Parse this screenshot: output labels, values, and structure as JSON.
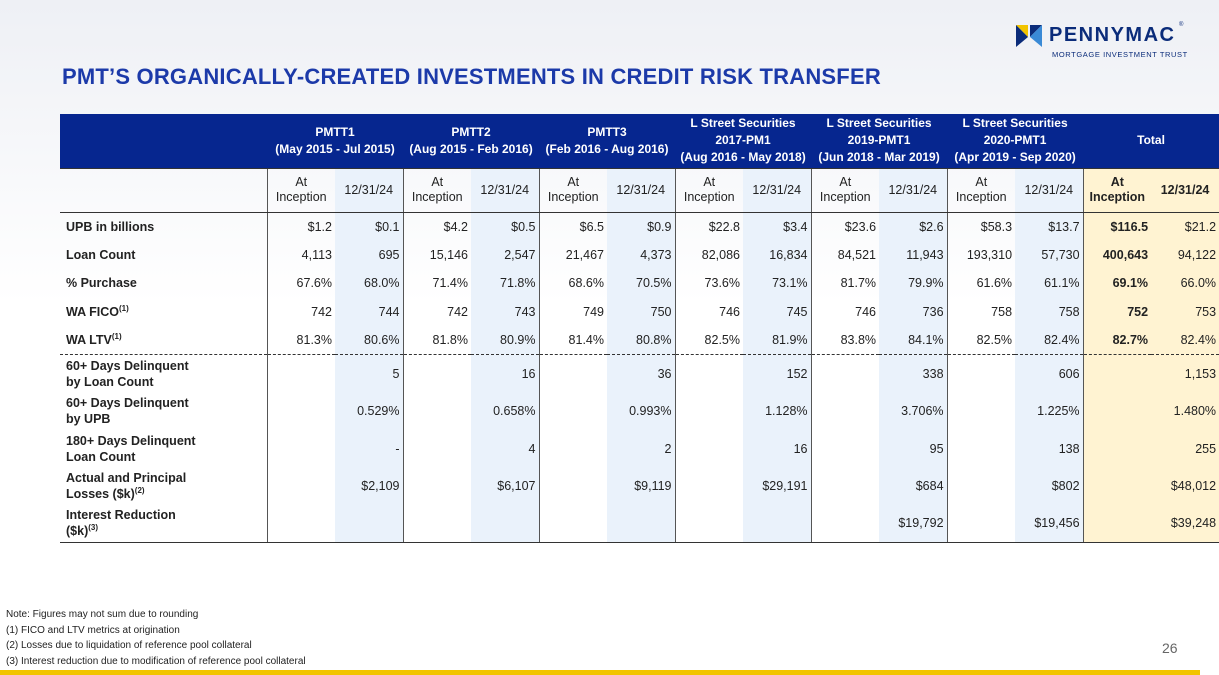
{
  "logo": {
    "name": "PENNYMAC",
    "reg": "®",
    "sub": "MORTGAGE INVESTMENT TRUST"
  },
  "title": "PMT’S ORGANICALLY-CREATED INVESTMENTS IN CREDIT RISK TRANSFER",
  "header": [
    {
      "l1": "PMTT1",
      "l2": "(May 2015 - Jul 2015)"
    },
    {
      "l1": "PMTT2",
      "l2": "(Aug 2015 - Feb 2016)"
    },
    {
      "l1": "PMTT3",
      "l2": "(Feb 2016 - Aug 2016)"
    },
    {
      "l1": "L Street Securities",
      "l2": "2017-PM1",
      "l3": "(Aug 2016 - May 2018)"
    },
    {
      "l1": "L Street Securities",
      "l2": "2019-PMT1",
      "l3": "(Jun 2018 - Mar 2019)"
    },
    {
      "l1": "L Street Securities",
      "l2": "2020-PMT1",
      "l3": "(Apr 2019 - Sep 2020)"
    },
    {
      "l1": "Total"
    }
  ],
  "subheader": {
    "at1": "At",
    "at2": "Inception",
    "date": "12/31/24"
  },
  "rows": [
    {
      "label": "UPB in billions",
      "sup": "",
      "values": [
        "$1.2",
        "$0.1",
        "$4.2",
        "$0.5",
        "$6.5",
        "$0.9",
        "$22.8",
        "$3.4",
        "$23.6",
        "$2.6",
        "$58.3",
        "$13.7",
        "$116.5",
        "$21.2"
      ]
    },
    {
      "label": "Loan Count",
      "sup": "",
      "values": [
        "4,113",
        "695",
        "15,146",
        "2,547",
        "21,467",
        "4,373",
        "82,086",
        "16,834",
        "84,521",
        "11,943",
        "193,310",
        "57,730",
        "400,643",
        "94,122"
      ]
    },
    {
      "label": "% Purchase",
      "sup": "",
      "values": [
        "67.6%",
        "68.0%",
        "71.4%",
        "71.8%",
        "68.6%",
        "70.5%",
        "73.6%",
        "73.1%",
        "81.7%",
        "79.9%",
        "61.6%",
        "61.1%",
        "69.1%",
        "66.0%"
      ]
    },
    {
      "label": "WA FICO",
      "sup": "(1)",
      "values": [
        "742",
        "744",
        "742",
        "743",
        "749",
        "750",
        "746",
        "745",
        "746",
        "736",
        "758",
        "758",
        "752",
        "753"
      ]
    },
    {
      "label": "WA LTV",
      "sup": "(1)",
      "values": [
        "81.3%",
        "80.6%",
        "81.8%",
        "80.9%",
        "81.4%",
        "80.8%",
        "82.5%",
        "81.9%",
        "83.8%",
        "84.1%",
        "82.5%",
        "82.4%",
        "82.7%",
        "82.4%"
      ]
    }
  ],
  "drows": [
    {
      "l1": "60+ Days Delinquent",
      "l2": "by Loan Count",
      "sup": "",
      "values": [
        "",
        "5",
        "",
        "16",
        "",
        "36",
        "",
        "152",
        "",
        "338",
        "",
        "606",
        "",
        "1,153"
      ]
    },
    {
      "l1": "60+ Days Delinquent",
      "l2": "by UPB",
      "sup": "",
      "values": [
        "",
        "0.529%",
        "",
        "0.658%",
        "",
        "0.993%",
        "",
        "1.128%",
        "",
        "3.706%",
        "",
        "1.225%",
        "",
        "1.480%"
      ]
    },
    {
      "l1": "180+ Days Delinquent",
      "l2": "Loan Count",
      "sup": "",
      "values": [
        "",
        "-",
        "",
        "4",
        "",
        "2",
        "",
        "16",
        "",
        "95",
        "",
        "138",
        "",
        "255"
      ]
    },
    {
      "l1": "Actual and Principal",
      "l2": "Losses ($k)",
      "sup": "(2)",
      "values": [
        "",
        "$2,109",
        "",
        "$6,107",
        "",
        "$9,119",
        "",
        "$29,191",
        "",
        "$684",
        "",
        "$802",
        "",
        "$48,012"
      ]
    },
    {
      "l1": "Interest Reduction",
      "l2": "($k)",
      "sup": "(3)",
      "values": [
        "",
        "",
        "",
        "",
        "",
        "",
        "",
        "",
        "",
        "$19,792",
        "",
        "$19,456",
        "",
        "$39,248"
      ]
    }
  ],
  "notes": [
    "Note: Figures may not sum due to rounding",
    "(1) FICO and LTV metrics at origination",
    "(2) Losses due to liquidation of reference pool collateral",
    "(3) Interest reduction due to modification of reference pool collateral"
  ],
  "page_number": "26",
  "colors": {
    "brand_blue": "#06268f",
    "title_blue": "#1c3aa9",
    "highlight_light": "#eaf2fb",
    "highlight_total": "#fff3d2",
    "accent_yellow": "#f2c400"
  }
}
